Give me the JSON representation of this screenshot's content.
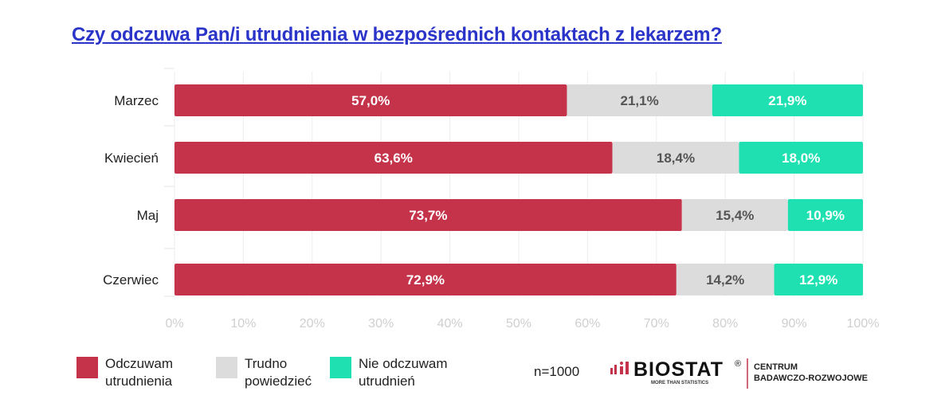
{
  "title": "Czy odczuwa Pan/i utrudnienia w bezpośrednich kontaktach z lekarzem?",
  "chart_data": {
    "type": "bar",
    "orientation": "horizontal",
    "stacked": true,
    "categories": [
      "Marzec",
      "Kwiecień",
      "Maj",
      "Czerwiec"
    ],
    "series": [
      {
        "name": "Odczuwam utrudnienia",
        "values": [
          57.0,
          63.6,
          73.7,
          72.9
        ],
        "labels": [
          "57,0%",
          "63,6%",
          "73,7%",
          "72,9%"
        ],
        "color": "#c5334a",
        "label_color": "#ffffff"
      },
      {
        "name": "Trudno powiedzieć",
        "values": [
          21.1,
          18.4,
          15.4,
          14.2
        ],
        "labels": [
          "21,1%",
          "18,4%",
          "15,4%",
          "14,2%"
        ],
        "color": "#dcdcdc",
        "label_color": "#555555"
      },
      {
        "name": "Nie odczuwam utrudnień",
        "values": [
          21.9,
          18.0,
          10.9,
          12.9
        ],
        "labels": [
          "21,9%",
          "18,0%",
          "10,9%",
          "12,9%"
        ],
        "color": "#1fe0b1",
        "label_color": "#ffffff"
      }
    ],
    "xlim": [
      0,
      100
    ],
    "xticks": [
      "0%",
      "10%",
      "20%",
      "30%",
      "40%",
      "50%",
      "60%",
      "70%",
      "80%",
      "90%",
      "100%"
    ],
    "grid": true
  },
  "legend": [
    {
      "line1": "Odczuwam",
      "line2": "utrudnienia",
      "color": "#c5334a",
      "icon": "legend-swatch-red"
    },
    {
      "line1": "Trudno",
      "line2": "powiedzieć",
      "color": "#dcdcdc",
      "icon": "legend-swatch-grey"
    },
    {
      "line1": "Nie odczuwam",
      "line2": "utrudnień",
      "color": "#1fe0b1",
      "icon": "legend-swatch-green"
    }
  ],
  "sample": "n=1000",
  "logo": {
    "name": "BIOSTAT",
    "registered": "®",
    "tagline": "MORE THAN STATISTICS",
    "division_line1": "CENTRUM",
    "division_line2": "BADAWCZO-ROZWOJOWE",
    "icon": "biostat-bars-icon"
  }
}
